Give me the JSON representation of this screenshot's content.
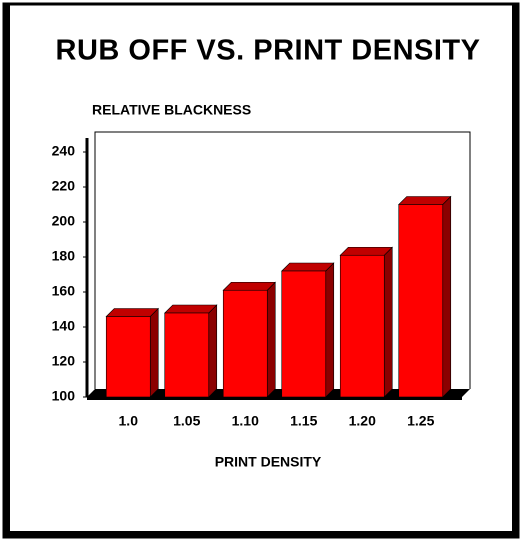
{
  "chart_data": {
    "type": "bar3d",
    "title": "RUB OFF VS. PRINT DENSITY",
    "y_label": "RELATIVE BLACKNESS",
    "x_label": "PRINT DENSITY",
    "categories": [
      "1.0",
      "1.05",
      "1.10",
      "1.15",
      "1.20",
      "1.25"
    ],
    "values": [
      146,
      148,
      161,
      172,
      181,
      210
    ],
    "color": "#ff0000",
    "ylim": [
      100,
      240
    ],
    "yticks": [
      100,
      120,
      140,
      160,
      180,
      200,
      220,
      240
    ]
  }
}
